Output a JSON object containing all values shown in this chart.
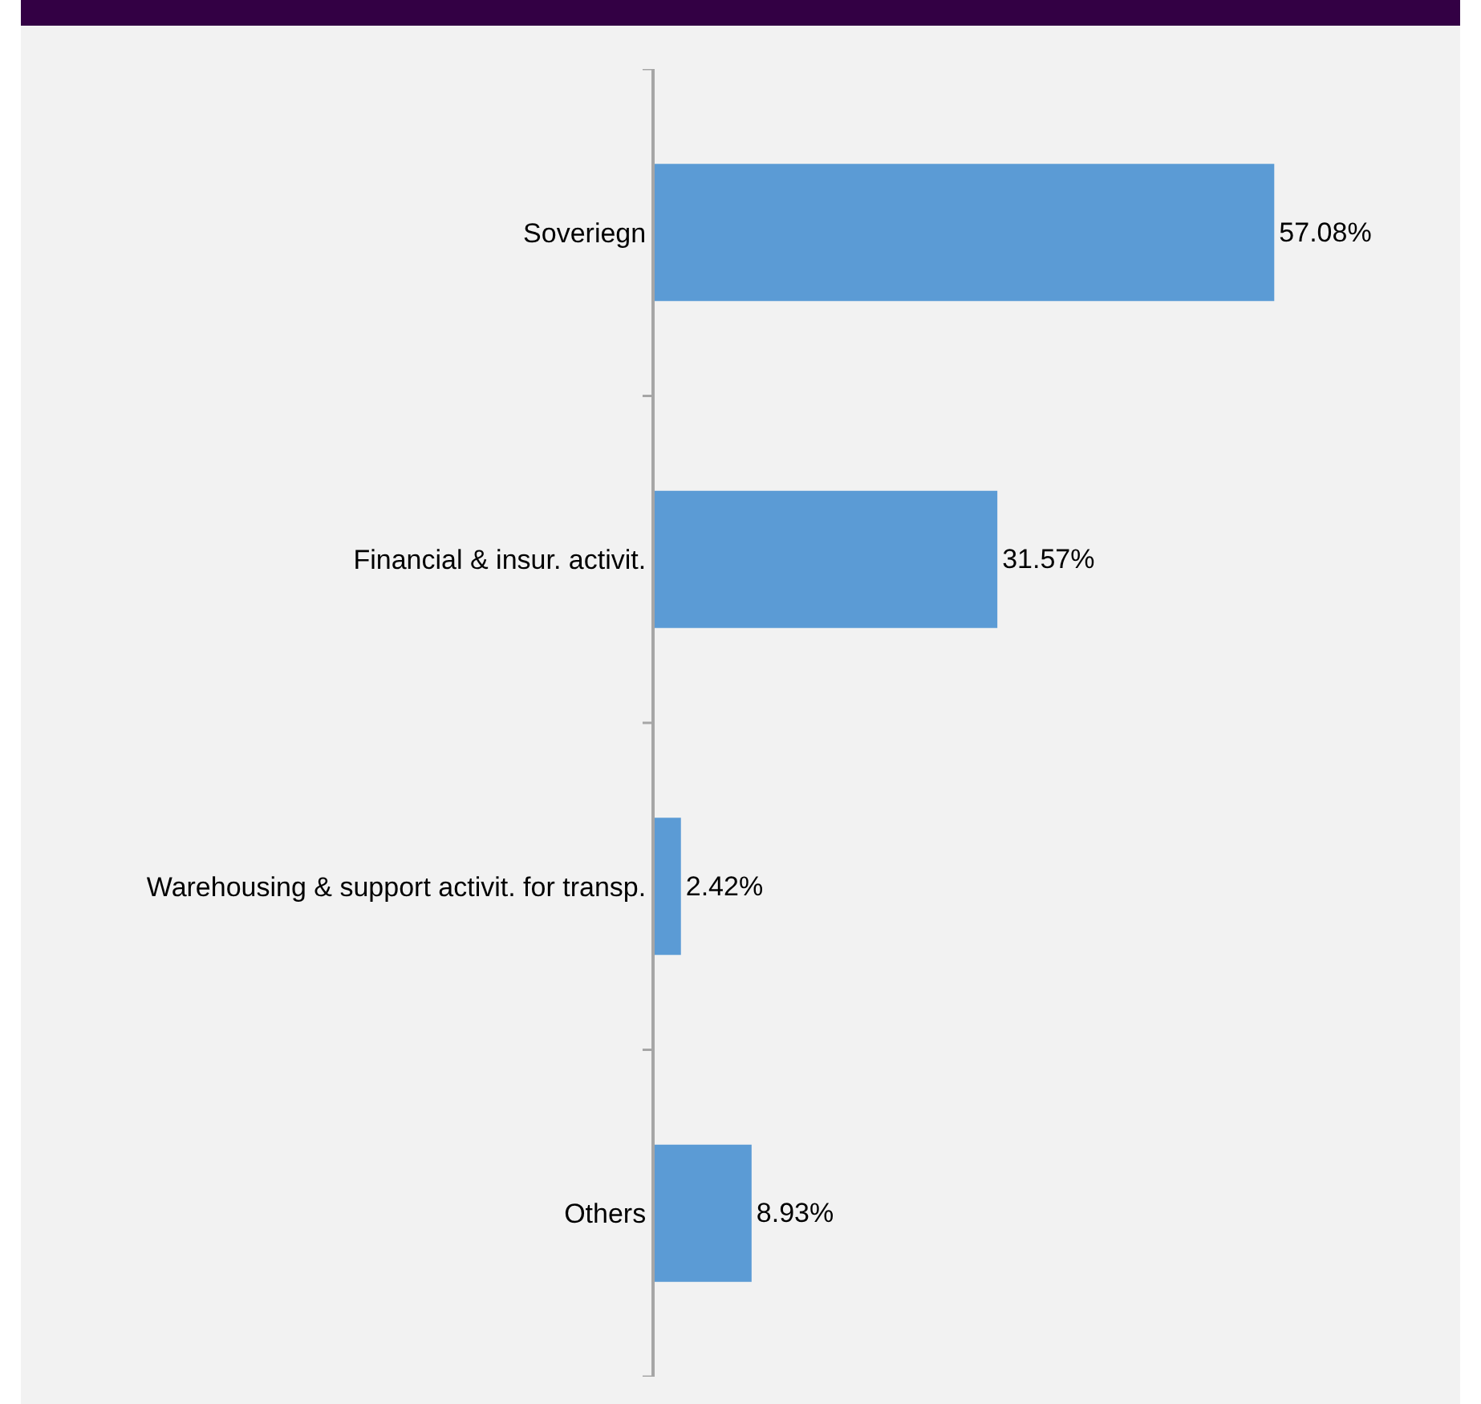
{
  "chart_data": {
    "type": "bar",
    "orientation": "horizontal",
    "categories": [
      "Soveriegn",
      "Financial & insur. activit.",
      "Warehousing & support activit. for transp.",
      "Others"
    ],
    "values": [
      57.08,
      31.57,
      2.42,
      8.93
    ],
    "value_labels": [
      "57.08%",
      "31.57%",
      "2.42%",
      "8.93%"
    ],
    "color": "#5b9bd5",
    "grid": false,
    "legend": false
  }
}
